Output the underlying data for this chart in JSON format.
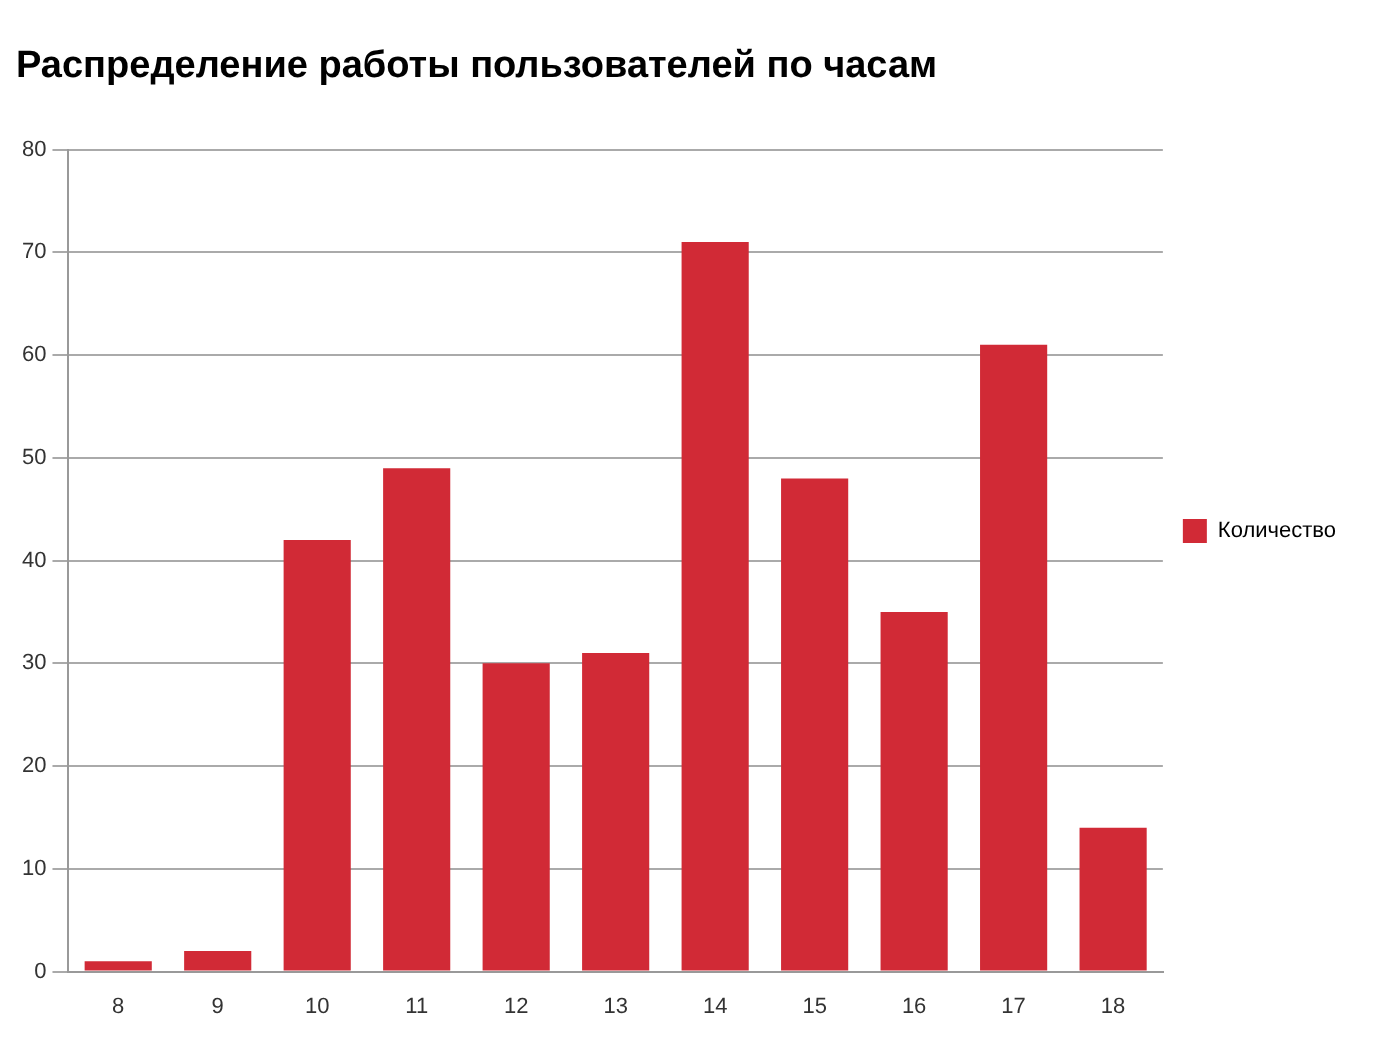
{
  "chart_data": {
    "type": "bar",
    "title": "Распределение работы пользователей по часам",
    "categories": [
      "8",
      "9",
      "10",
      "11",
      "12",
      "13",
      "14",
      "15",
      "16",
      "17",
      "18"
    ],
    "series": [
      {
        "name": "Количество",
        "color": "#d12a36",
        "values": [
          1,
          2,
          42,
          49,
          30,
          31,
          71,
          48,
          35,
          61,
          14
        ]
      }
    ],
    "ylim": [
      0,
      80
    ],
    "yticks": [
      0,
      10,
      20,
      30,
      40,
      50,
      60,
      70,
      80
    ],
    "grid": "y",
    "legend": "right"
  }
}
